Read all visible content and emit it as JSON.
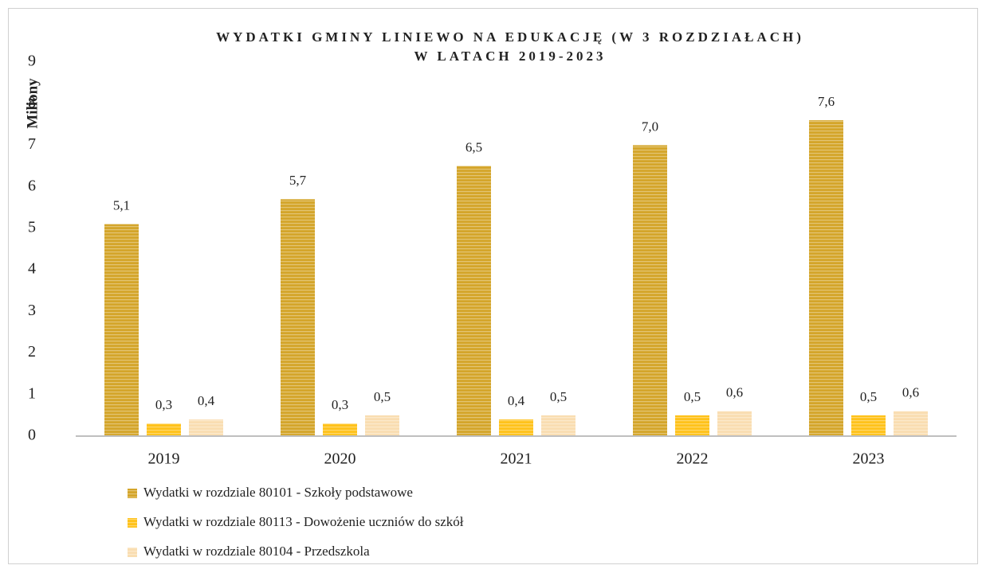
{
  "chart_data": {
    "type": "bar",
    "title": [
      "WYDATKI GMINY LINIEWO NA EDUKACJĘ (W 3 ROZDZIAŁACH)",
      "W LATACH 2019-2023"
    ],
    "y_label": "Miliony",
    "categories": [
      "2019",
      "2020",
      "2021",
      "2022",
      "2023"
    ],
    "series": [
      {
        "name": "Wydatki w rozdziale 80101 - Szkoły podstawowe",
        "color": "#D4A52A",
        "values": [
          5.1,
          5.7,
          6.5,
          7.0,
          7.6
        ],
        "value_labels": [
          "5,1",
          "5,7",
          "6,5",
          "7,0",
          "7,6"
        ]
      },
      {
        "name": "Wydatki w rozdziale 80113 - Dowożenie uczniów do szkół",
        "color": "#FFC21A",
        "values": [
          0.3,
          0.3,
          0.4,
          0.5,
          0.5
        ],
        "value_labels": [
          "0,3",
          "0,3",
          "0,4",
          "0,5",
          "0,5"
        ]
      },
      {
        "name": "Wydatki w rozdziale 80104 - Przedszkola",
        "color": "#F9DDB1",
        "values": [
          0.4,
          0.5,
          0.5,
          0.6,
          0.6
        ],
        "value_labels": [
          "0,4",
          "0,5",
          "0,5",
          "0,6",
          "0,6"
        ]
      }
    ],
    "ylim": [
      0,
      9
    ],
    "yticks": [
      0,
      1,
      2,
      3,
      4,
      5,
      6,
      7,
      8,
      9
    ],
    "grid": false,
    "legend": "bottom-left"
  }
}
